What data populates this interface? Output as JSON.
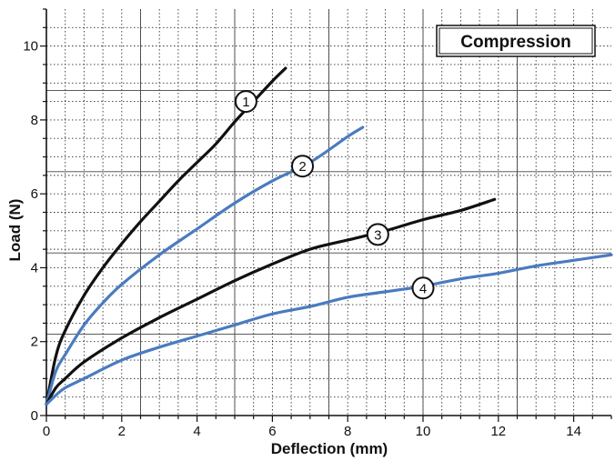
{
  "chart_data": {
    "type": "line",
    "title": "Compression",
    "xlabel": "Deflection (mm)",
    "ylabel": "Load (N)",
    "xlim": [
      0,
      15
    ],
    "ylim": [
      0,
      11
    ],
    "x_ticks": [
      0,
      2,
      4,
      6,
      8,
      10,
      12,
      14
    ],
    "y_ticks": [
      0,
      2,
      4,
      6,
      8,
      10
    ],
    "x_tick_labels": [
      "0",
      "2",
      "4",
      "6",
      "8",
      "10",
      "12",
      "14"
    ],
    "y_tick_labels": [
      "0",
      "2",
      "4",
      "6",
      "8",
      "10"
    ],
    "grid": true,
    "grid_style": "dotted minor, solid major",
    "legend_placement": "top-right",
    "series": [
      {
        "marker_label": "1",
        "color": "#111111",
        "marker_at": [
          5.3,
          8.5
        ],
        "points": [
          [
            0,
            0.3
          ],
          [
            0.25,
            1.6
          ],
          [
            0.5,
            2.3
          ],
          [
            1,
            3.25
          ],
          [
            1.5,
            4.0
          ],
          [
            2,
            4.65
          ],
          [
            2.5,
            5.25
          ],
          [
            3,
            5.8
          ],
          [
            3.5,
            6.35
          ],
          [
            4,
            6.85
          ],
          [
            4.5,
            7.35
          ],
          [
            5,
            7.95
          ],
          [
            5.5,
            8.5
          ],
          [
            6,
            9.05
          ],
          [
            6.35,
            9.4
          ]
        ]
      },
      {
        "marker_label": "2",
        "color": "#4a7bbf",
        "marker_at": [
          6.8,
          6.75
        ],
        "points": [
          [
            0,
            0.3
          ],
          [
            0.25,
            1.2
          ],
          [
            0.5,
            1.65
          ],
          [
            1,
            2.45
          ],
          [
            1.5,
            3.05
          ],
          [
            2,
            3.55
          ],
          [
            3,
            4.35
          ],
          [
            4,
            5.05
          ],
          [
            5,
            5.75
          ],
          [
            6,
            6.35
          ],
          [
            7,
            6.85
          ],
          [
            8,
            7.55
          ],
          [
            8.4,
            7.8
          ]
        ]
      },
      {
        "marker_label": "3",
        "color": "#111111",
        "marker_at": [
          8.8,
          4.9
        ],
        "points": [
          [
            0,
            0.3
          ],
          [
            0.25,
            0.75
          ],
          [
            0.5,
            1.0
          ],
          [
            1,
            1.45
          ],
          [
            2,
            2.1
          ],
          [
            3,
            2.65
          ],
          [
            4,
            3.15
          ],
          [
            5,
            3.65
          ],
          [
            6,
            4.1
          ],
          [
            7,
            4.5
          ],
          [
            8,
            4.75
          ],
          [
            9,
            5.0
          ],
          [
            10,
            5.3
          ],
          [
            11,
            5.55
          ],
          [
            11.9,
            5.85
          ]
        ]
      },
      {
        "marker_label": "4",
        "color": "#4a7bbf",
        "marker_at": [
          10.0,
          3.45
        ],
        "points": [
          [
            0,
            0.3
          ],
          [
            0.25,
            0.55
          ],
          [
            0.5,
            0.75
          ],
          [
            1,
            1.0
          ],
          [
            2,
            1.5
          ],
          [
            3,
            1.85
          ],
          [
            4,
            2.15
          ],
          [
            5,
            2.45
          ],
          [
            6,
            2.75
          ],
          [
            7,
            2.95
          ],
          [
            8,
            3.2
          ],
          [
            9,
            3.35
          ],
          [
            10,
            3.5
          ],
          [
            11,
            3.7
          ],
          [
            12,
            3.85
          ],
          [
            13,
            4.05
          ],
          [
            14,
            4.2
          ],
          [
            15,
            4.35
          ]
        ]
      }
    ]
  }
}
